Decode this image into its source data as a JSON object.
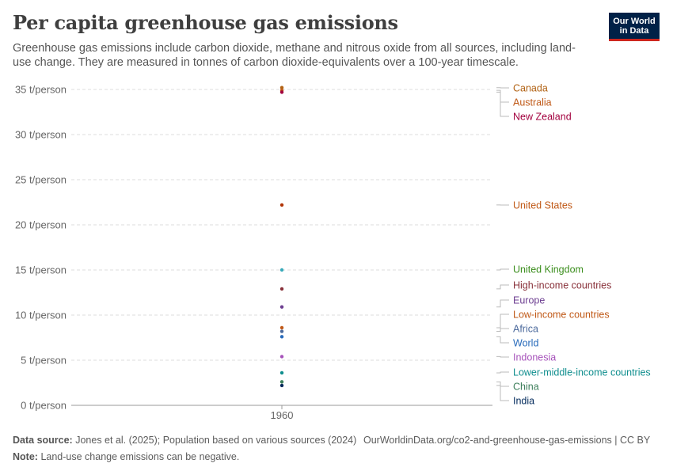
{
  "header": {
    "title": "Per capita greenhouse gas emissions",
    "subtitle": "Greenhouse gas emissions include carbon dioxide, methane and nitrous oxide from all sources, including land-use change. They are measured in tonnes of carbon dioxide-equivalents over a 100-year timescale."
  },
  "logo": {
    "line1": "Our World",
    "line2": "in Data",
    "bg": "#002147",
    "accent": "#ce261e"
  },
  "footer": {
    "source_label": "Data source:",
    "source_text": "Jones et al. (2025); Population based on various sources (2024)",
    "url_text": "OurWorldinData.org/co2-and-greenhouse-gas-emissions | CC BY",
    "note_label": "Note:",
    "note_text": "Land-use change emissions can be negative."
  },
  "chart_data": {
    "type": "scatter",
    "title": "Per capita greenhouse gas emissions",
    "xlabel": "",
    "ylabel": "",
    "x": [
      1960
    ],
    "x_tick_labels": [
      "1960"
    ],
    "ylim": [
      0,
      35
    ],
    "y_ticks": [
      0,
      5,
      10,
      15,
      20,
      25,
      30,
      35
    ],
    "y_tick_labels": [
      "0 t/person",
      "5 t/person",
      "10 t/person",
      "15 t/person",
      "20 t/person",
      "25 t/person",
      "30 t/person",
      "35 t/person"
    ],
    "grid": true,
    "series": [
      {
        "name": "Canada",
        "values": [
          35.2
        ],
        "color": "#b16214"
      },
      {
        "name": "Australia",
        "values": [
          34.9
        ],
        "color": "#c05917"
      },
      {
        "name": "New Zealand",
        "values": [
          34.7
        ],
        "color": "#a2003e"
      },
      {
        "name": "United States",
        "values": [
          22.2
        ],
        "color": "#b13507"
      },
      {
        "name": "United Kingdom",
        "values": [
          15.0
        ],
        "color": "#38aaba"
      },
      {
        "name": "High-income countries",
        "values": [
          12.9
        ],
        "color": "#883039"
      },
      {
        "name": "Europe",
        "values": [
          10.9
        ],
        "color": "#6d3e91"
      },
      {
        "name": "Low-income countries",
        "values": [
          8.6
        ],
        "color": "#c05917"
      },
      {
        "name": "Africa",
        "values": [
          8.2
        ],
        "color": "#4c6a9c"
      },
      {
        "name": "World",
        "values": [
          7.6
        ],
        "color": "#286bbb"
      },
      {
        "name": "Indonesia",
        "values": [
          5.4
        ],
        "color": "#a652ba"
      },
      {
        "name": "Lower-middle-income countries",
        "values": [
          3.6
        ],
        "color": "#0f8e8e"
      },
      {
        "name": "China",
        "values": [
          2.6
        ],
        "color": "#3c7e5a"
      },
      {
        "name": "India",
        "values": [
          2.2
        ],
        "color": "#00295b"
      }
    ],
    "label_colors": {
      "Canada": "#b16214",
      "Australia": "#c05917",
      "New Zealand": "#a2003e",
      "United States": "#c05917",
      "United Kingdom": "#3b8e1d",
      "High-income countries": "#883039",
      "Europe": "#6d3e91",
      "Low-income countries": "#c05917",
      "Africa": "#4c6a9c",
      "World": "#286bbb",
      "Indonesia": "#a652ba",
      "Lower-middle-income countries": "#0f8e8e",
      "China": "#3c7e5a",
      "India": "#00295b"
    },
    "legend": "right-side direct labels"
  }
}
